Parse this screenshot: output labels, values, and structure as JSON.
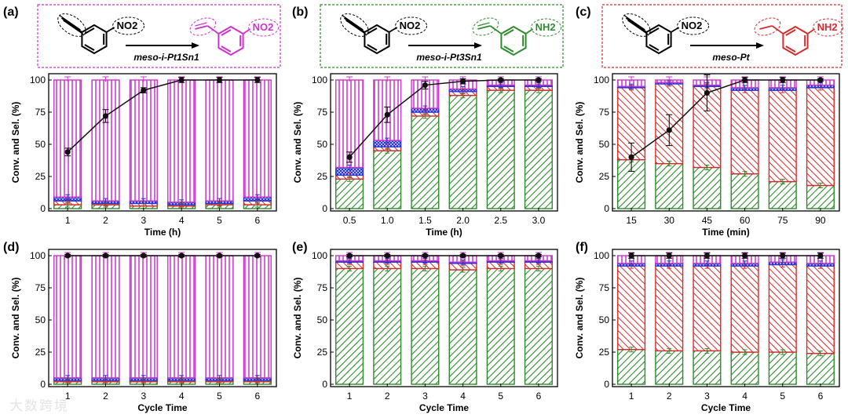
{
  "figure": {
    "watermark": "大数跨境",
    "colors": {
      "green": "#2e8a2e",
      "red": "#d62b2b",
      "blue": "#2233dd",
      "magenta": "#cc33cc",
      "line": "#111111"
    }
  },
  "schemes": [
    {
      "label": "(a)",
      "reactant_group": "NO2",
      "product_group": "NO2",
      "catalyst": "meso-i-Pt1Sn1",
      "product_color": "#cc33cc",
      "product_type": "vinyl",
      "frame_color": "#cc33cc"
    },
    {
      "label": "(b)",
      "reactant_group": "NO2",
      "product_group": "NH2",
      "catalyst": "meso-i-Pt3Sn1",
      "product_color": "#2e8a2e",
      "product_type": "vinyl",
      "frame_color": "#2e8a2e"
    },
    {
      "label": "(c)",
      "reactant_group": "NO2",
      "product_group": "NH2",
      "catalyst": "meso-Pt",
      "product_color": "#d62b2b",
      "product_type": "ethyl",
      "frame_color": "#d62b2b"
    }
  ],
  "chart_data": [
    {
      "label": "(a)",
      "type": "bar",
      "xlabel": "Time (h)",
      "ylabel": "Conv. and Sel. (%)",
      "categories": [
        "1",
        "2",
        "3",
        "4",
        "5",
        "6"
      ],
      "ylim": [
        0,
        100
      ],
      "yticks": [
        0,
        25,
        50,
        75,
        100
      ],
      "stack": {
        "green": [
          3,
          3,
          2,
          2,
          3,
          3
        ],
        "red": [
          3,
          1,
          2,
          1,
          1,
          3
        ],
        "blue": [
          3,
          2,
          2,
          2,
          2,
          3
        ],
        "magenta": [
          91,
          94,
          94,
          95,
          94,
          91
        ]
      },
      "conversion": [
        44,
        72,
        92,
        100,
        100,
        100
      ],
      "conversion_err": [
        3,
        5,
        2,
        2,
        2,
        2
      ]
    },
    {
      "label": "(b)",
      "type": "bar",
      "xlabel": "Time (h)",
      "ylabel": "Conv. and Sel. (%)",
      "categories": [
        "0.5",
        "1.0",
        "1.5",
        "2.0",
        "2.5",
        "3.0"
      ],
      "ylim": [
        0,
        100
      ],
      "yticks": [
        0,
        25,
        50,
        75,
        100
      ],
      "stack": {
        "green": [
          23,
          45,
          72,
          88,
          92,
          92
        ],
        "red": [
          3,
          3,
          3,
          3,
          3,
          3
        ],
        "blue": [
          6,
          5,
          3,
          2,
          1,
          1
        ],
        "magenta": [
          68,
          47,
          22,
          7,
          4,
          4
        ]
      },
      "conversion": [
        40,
        73,
        96,
        99,
        100,
        100
      ],
      "conversion_err": [
        4,
        6,
        3,
        2,
        1,
        1
      ]
    },
    {
      "label": "(c)",
      "type": "bar",
      "xlabel": "Time (min)",
      "ylabel": "Conv. and Sel. (%)",
      "categories": [
        "15",
        "30",
        "45",
        "60",
        "75",
        "90"
      ],
      "ylim": [
        0,
        100
      ],
      "yticks": [
        0,
        25,
        50,
        75,
        100
      ],
      "stack": {
        "green": [
          38,
          35,
          32,
          27,
          21,
          18
        ],
        "red": [
          56,
          62,
          63,
          65,
          71,
          76
        ],
        "blue": [
          1,
          1,
          1,
          2,
          2,
          2
        ],
        "magenta": [
          5,
          2,
          4,
          6,
          6,
          4
        ]
      },
      "conversion": [
        40,
        61,
        90,
        100,
        100,
        100
      ],
      "conversion_err": [
        11,
        12,
        14,
        2,
        2,
        1
      ]
    },
    {
      "label": "(d)",
      "type": "bar",
      "xlabel": "Cycle Time",
      "ylabel": "Conv. and Sel. (%)",
      "categories": [
        "1",
        "2",
        "3",
        "4",
        "5",
        "6"
      ],
      "ylim": [
        0,
        100
      ],
      "yticks": [
        0,
        25,
        50,
        75,
        100
      ],
      "stack": {
        "green": [
          2,
          2,
          2,
          2,
          2,
          2
        ],
        "red": [
          1,
          1,
          1,
          1,
          1,
          1
        ],
        "blue": [
          2,
          2,
          2,
          2,
          2,
          2
        ],
        "magenta": [
          95,
          95,
          95,
          95,
          95,
          95
        ]
      },
      "conversion": [
        100,
        100,
        100,
        100,
        100,
        100
      ],
      "conversion_err": [
        1,
        1,
        1,
        1,
        1,
        1
      ]
    },
    {
      "label": "(e)",
      "type": "bar",
      "xlabel": "Cycle Time",
      "ylabel": "Conv. and Sel. (%)",
      "categories": [
        "1",
        "2",
        "3",
        "4",
        "5",
        "6"
      ],
      "ylim": [
        0,
        100
      ],
      "yticks": [
        0,
        25,
        50,
        75,
        100
      ],
      "stack": {
        "green": [
          90,
          90,
          90,
          89,
          90,
          90
        ],
        "red": [
          5,
          5,
          5,
          5,
          5,
          5
        ],
        "blue": [
          1,
          1,
          1,
          1,
          1,
          1
        ],
        "magenta": [
          4,
          4,
          4,
          5,
          4,
          4
        ]
      },
      "conversion": [
        100,
        100,
        100,
        100,
        100,
        100
      ],
      "conversion_err": [
        1,
        1,
        1,
        1,
        1,
        1
      ]
    },
    {
      "label": "(f)",
      "type": "bar",
      "xlabel": "Cycle Time",
      "ylabel": "Conv. and Sel. (%)",
      "categories": [
        "1",
        "2",
        "3",
        "4",
        "5",
        "6"
      ],
      "ylim": [
        0,
        100
      ],
      "yticks": [
        0,
        25,
        50,
        75,
        100
      ],
      "stack": {
        "green": [
          27,
          26,
          26,
          25,
          25,
          24
        ],
        "red": [
          65,
          66,
          66,
          67,
          68,
          68
        ],
        "blue": [
          2,
          2,
          2,
          2,
          2,
          2
        ],
        "magenta": [
          6,
          6,
          6,
          6,
          5,
          6
        ]
      },
      "conversion": [
        100,
        100,
        100,
        100,
        100,
        100
      ],
      "conversion_err": [
        2,
        2,
        2,
        2,
        2,
        2
      ]
    }
  ]
}
